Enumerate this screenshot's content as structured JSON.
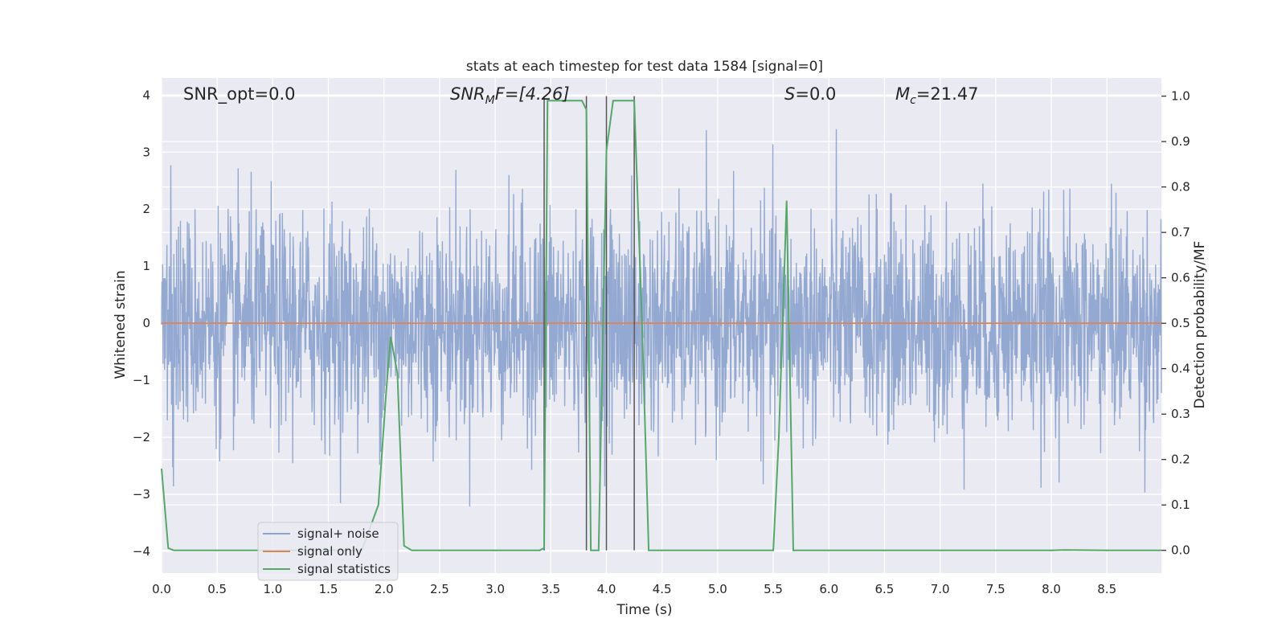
{
  "chart_data": {
    "type": "line",
    "title": "stats at each timestep for test data 1584 [signal=0]",
    "xlabel": "Time (s)",
    "ylabel_left": "Whitened strain",
    "ylabel_right": "Detection probability/MF",
    "xlim": [
      0,
      8.99
    ],
    "ylim_left": [
      -4.38,
      4.3
    ],
    "ylim_right": [
      -0.05,
      1.04
    ],
    "x_ticks": [
      "0.0",
      "0.5",
      "1.0",
      "1.5",
      "2.0",
      "2.5",
      "3.0",
      "3.5",
      "4.0",
      "4.5",
      "5.0",
      "5.5",
      "6.0",
      "6.5",
      "7.0",
      "7.5",
      "8.0",
      "8.5"
    ],
    "y_ticks_left": [
      "4",
      "3",
      "2",
      "1",
      "0",
      "−1",
      "−2",
      "−3",
      "−4"
    ],
    "y_ticks_right": [
      "1.0",
      "0.9",
      "0.8",
      "0.7",
      "0.6",
      "0.5",
      "0.4",
      "0.3",
      "0.2",
      "0.1",
      "0.0"
    ],
    "annotations": {
      "snr_opt": "SNR_opt=0.0",
      "snr_mf_main": "SNR",
      "snr_mf_sub": "M",
      "snr_mf_rest": "F=[4.26]",
      "s_main": "S",
      "s_rest": "=0.0",
      "mc_main": "M",
      "mc_sub": "c",
      "mc_rest": "=21.47"
    },
    "series": [
      {
        "name": "signal+ noise",
        "color": "#8fa5cf",
        "description": "whitened strain noise, amplitude roughly within ±2 with peaks near ±3.6"
      },
      {
        "name": "signal only",
        "color": "#dd8452",
        "values_constant": 0.0
      },
      {
        "name": "signal statistics",
        "color": "#55a868",
        "axis": "right",
        "x": [
          0.0,
          0.06,
          0.11,
          0.2,
          0.5,
          1.0,
          1.5,
          1.8,
          1.95,
          2.02,
          2.06,
          2.12,
          2.18,
          2.25,
          2.5,
          3.0,
          3.4,
          3.44,
          3.47,
          3.52,
          3.78,
          3.82,
          3.86,
          3.93,
          4.0,
          4.06,
          4.2,
          4.25,
          4.32,
          4.38,
          4.5,
          5.0,
          5.5,
          5.55,
          5.62,
          5.68,
          5.75,
          6.0,
          7.0,
          8.0,
          8.12,
          8.5,
          8.99
        ],
        "values": [
          0.18,
          0.005,
          0.0,
          0.0,
          0.0,
          0.0,
          0.0,
          0.0,
          0.1,
          0.35,
          0.47,
          0.39,
          0.01,
          0.0,
          0.0,
          0.0,
          0.0,
          0.005,
          0.99,
          0.99,
          0.99,
          0.97,
          0.0,
          0.0,
          0.88,
          0.99,
          0.99,
          0.99,
          0.5,
          0.0,
          0.0,
          0.0,
          0.0,
          0.25,
          0.77,
          0.0,
          0.0,
          0.0,
          0.0,
          0.0,
          0.001,
          0.0,
          0.0
        ]
      }
    ],
    "vlines_x": [
      3.44,
      3.82,
      4.0,
      4.25
    ],
    "legend_location": "lower-left"
  },
  "colors": {
    "axes_bg": "#eaeaf2",
    "grid": "#ffffff",
    "noise": "#8fa5cf",
    "signal_only": "#dd8452",
    "stats": "#55a868",
    "vline": "#555555"
  }
}
